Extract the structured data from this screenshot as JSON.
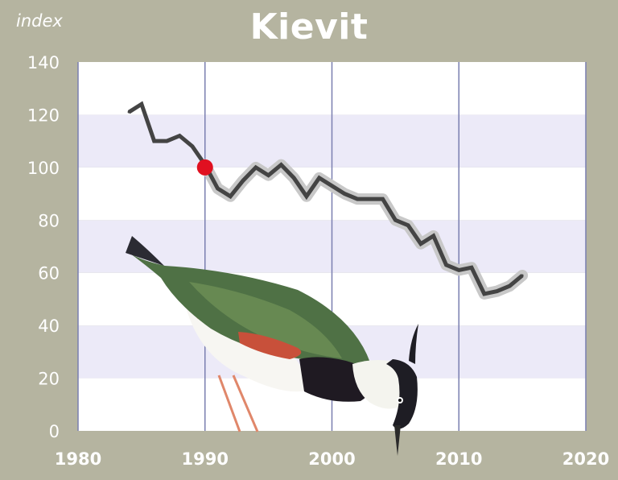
{
  "chart_data": {
    "type": "line",
    "title": "Kievit",
    "ylabel": "index",
    "xlabel": "",
    "xlim": [
      1980,
      2020
    ],
    "ylim": [
      0,
      140
    ],
    "x_ticks": [
      "1980",
      "1990",
      "2000",
      "2010",
      "2020"
    ],
    "y_ticks": [
      "0",
      "20",
      "40",
      "60",
      "80",
      "100",
      "120",
      "140"
    ],
    "grid": "vertical lines at decades; alternating horizontal bands every 20",
    "series": [
      {
        "name": "",
        "color": "#444444",
        "band_color": "#c8c8c8",
        "x": [
          1984,
          1985,
          1986,
          1987,
          1988,
          1989,
          1990,
          1991,
          1992,
          1993,
          1994,
          1995,
          1996,
          1997,
          1998,
          1999,
          2000,
          2001,
          2002,
          2003,
          2004,
          2005,
          2006,
          2007,
          2008,
          2009,
          2010,
          2011,
          2012,
          2013,
          2014,
          2015
        ],
        "y": [
          121,
          124,
          110,
          110,
          112,
          108,
          101,
          92,
          89,
          95,
          100,
          97,
          101,
          96,
          89,
          96,
          93,
          90,
          88,
          88,
          88,
          80,
          78,
          71,
          74,
          63,
          61,
          62,
          52,
          53,
          55,
          59
        ]
      }
    ],
    "reference_point": {
      "x": 1990,
      "y": 100,
      "color": "#e01020"
    },
    "colors": {
      "background": "#b5b4a0",
      "plot_band": "#eceaf8",
      "plot_white": "#ffffff",
      "grid_line": "#7a7fb0",
      "text": "#ffffff"
    }
  },
  "illustration": "lapwing-bird-illustration"
}
